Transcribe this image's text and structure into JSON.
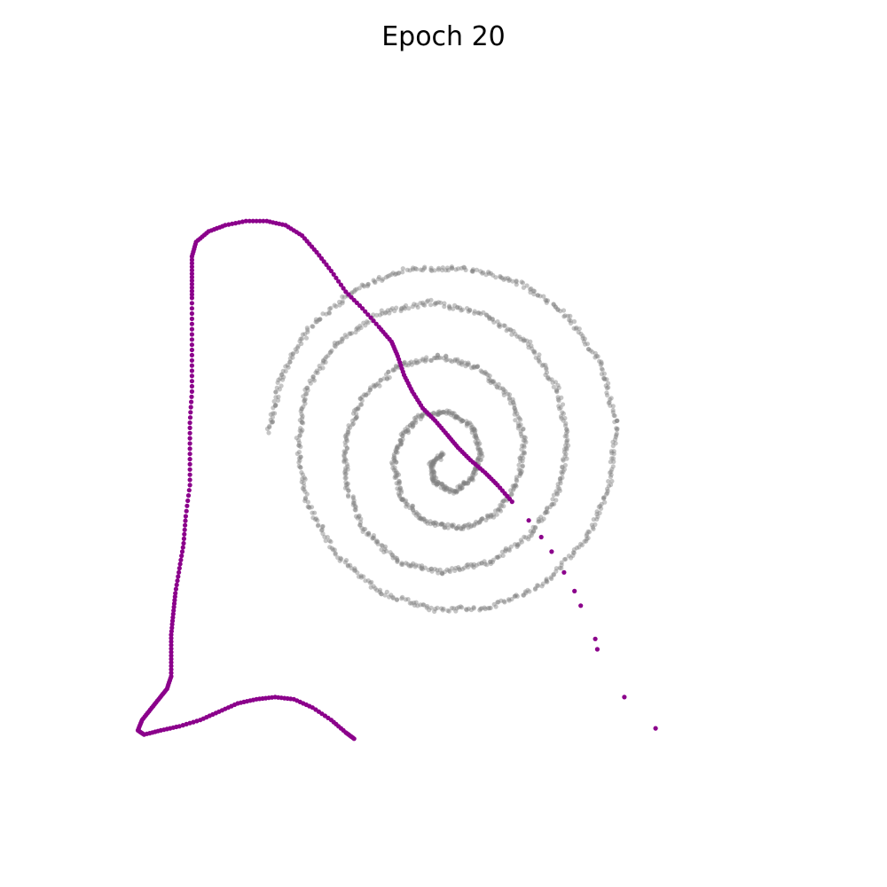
{
  "chart_data": {
    "type": "scatter",
    "title": "Epoch 20",
    "xlabel": "",
    "ylabel": "",
    "axes_visible": false,
    "grid": false,
    "xlim": [
      -1.6,
      1.6
    ],
    "ylim": [
      -1.6,
      1.6
    ],
    "series": [
      {
        "role": "target",
        "color": "#808080",
        "style": "dense point cloud along a three-turn spiral",
        "points": [
          [
            0.0,
            -0.05
          ],
          [
            -0.06,
            -0.1
          ],
          [
            -0.04,
            -0.19
          ],
          [
            0.05,
            -0.23
          ],
          [
            0.14,
            -0.17
          ],
          [
            0.18,
            -0.05
          ],
          [
            0.14,
            0.08
          ],
          [
            0.03,
            0.15
          ],
          [
            -0.1,
            0.14
          ],
          [
            -0.2,
            0.04
          ],
          [
            -0.24,
            -0.1
          ],
          [
            -0.2,
            -0.27
          ],
          [
            -0.08,
            -0.38
          ],
          [
            0.09,
            -0.41
          ],
          [
            0.25,
            -0.34
          ],
          [
            0.36,
            -0.18
          ],
          [
            0.39,
            0.02
          ],
          [
            0.32,
            0.22
          ],
          [
            0.17,
            0.36
          ],
          [
            -0.02,
            0.42
          ],
          [
            -0.22,
            0.37
          ],
          [
            -0.39,
            0.22
          ],
          [
            -0.47,
            0.02
          ],
          [
            -0.47,
            -0.2
          ],
          [
            -0.38,
            -0.42
          ],
          [
            -0.22,
            -0.57
          ],
          [
            0.0,
            -0.62
          ],
          [
            0.22,
            -0.57
          ],
          [
            0.42,
            -0.44
          ],
          [
            0.55,
            -0.24
          ],
          [
            0.6,
            0.0
          ],
          [
            0.55,
            0.26
          ],
          [
            0.41,
            0.48
          ],
          [
            0.2,
            0.62
          ],
          [
            -0.05,
            0.68
          ],
          [
            -0.3,
            0.63
          ],
          [
            -0.52,
            0.48
          ],
          [
            -0.66,
            0.26
          ],
          [
            -0.7,
            0.0
          ],
          [
            -0.66,
            -0.28
          ],
          [
            -0.52,
            -0.53
          ],
          [
            -0.31,
            -0.71
          ],
          [
            -0.05,
            -0.8
          ],
          [
            0.23,
            -0.79
          ],
          [
            0.49,
            -0.67
          ],
          [
            0.69,
            -0.46
          ],
          [
            0.8,
            -0.2
          ],
          [
            0.83,
            0.1
          ],
          [
            0.76,
            0.38
          ],
          [
            0.6,
            0.61
          ],
          [
            0.38,
            0.77
          ],
          [
            0.11,
            0.84
          ],
          [
            -0.17,
            0.84
          ],
          [
            -0.43,
            0.74
          ],
          [
            -0.65,
            0.55
          ],
          [
            -0.78,
            0.32
          ],
          [
            -0.84,
            0.06
          ]
        ]
      },
      {
        "role": "model",
        "color": "#8b008b",
        "style": "small points forming a distorted curve",
        "points": [
          [
            1.02,
            -1.37
          ],
          [
            0.87,
            -1.22
          ],
          [
            0.74,
            -0.99
          ],
          [
            0.73,
            -0.94
          ],
          [
            0.66,
            -0.78
          ],
          [
            0.63,
            -0.71
          ],
          [
            0.58,
            -0.62
          ],
          [
            0.52,
            -0.52
          ],
          [
            0.47,
            -0.45
          ],
          [
            0.41,
            -0.37
          ],
          [
            0.33,
            -0.28
          ],
          [
            0.26,
            -0.2
          ],
          [
            0.2,
            -0.14
          ],
          [
            0.13,
            -0.08
          ],
          [
            0.07,
            -0.02
          ],
          [
            0.02,
            0.04
          ],
          [
            -0.04,
            0.11
          ],
          [
            -0.1,
            0.17
          ],
          [
            -0.15,
            0.25
          ],
          [
            -0.19,
            0.33
          ],
          [
            -0.22,
            0.42
          ],
          [
            -0.25,
            0.49
          ],
          [
            -0.31,
            0.56
          ],
          [
            -0.39,
            0.65
          ],
          [
            -0.47,
            0.73
          ],
          [
            -0.54,
            0.83
          ],
          [
            -0.61,
            0.92
          ],
          [
            -0.68,
            1.0
          ],
          [
            -0.76,
            1.05
          ],
          [
            -0.85,
            1.07
          ],
          [
            -0.95,
            1.07
          ],
          [
            -1.05,
            1.05
          ],
          [
            -1.13,
            1.02
          ],
          [
            -1.19,
            0.97
          ],
          [
            -1.21,
            0.9
          ],
          [
            -1.21,
            0.8
          ],
          [
            -1.21,
            0.7
          ],
          [
            -1.21,
            0.55
          ],
          [
            -1.21,
            0.4
          ],
          [
            -1.21,
            0.25
          ],
          [
            -1.22,
            0.1
          ],
          [
            -1.22,
            -0.05
          ],
          [
            -1.22,
            -0.2
          ],
          [
            -1.24,
            -0.35
          ],
          [
            -1.25,
            -0.48
          ],
          [
            -1.27,
            -0.6
          ],
          [
            -1.29,
            -0.72
          ],
          [
            -1.3,
            -0.82
          ],
          [
            -1.31,
            -0.92
          ],
          [
            -1.31,
            -1.02
          ],
          [
            -1.31,
            -1.12
          ],
          [
            -1.33,
            -1.18
          ],
          [
            -1.37,
            -1.23
          ],
          [
            -1.41,
            -1.28
          ],
          [
            -1.45,
            -1.33
          ],
          [
            -1.47,
            -1.38
          ],
          [
            -1.44,
            -1.4
          ],
          [
            -1.36,
            -1.38
          ],
          [
            -1.27,
            -1.36
          ],
          [
            -1.17,
            -1.33
          ],
          [
            -1.08,
            -1.29
          ],
          [
            -0.99,
            -1.25
          ],
          [
            -0.9,
            -1.23
          ],
          [
            -0.81,
            -1.22
          ],
          [
            -0.72,
            -1.23
          ],
          [
            -0.63,
            -1.27
          ],
          [
            -0.54,
            -1.33
          ],
          [
            -0.47,
            -1.39
          ],
          [
            -0.43,
            -1.42
          ]
        ]
      }
    ]
  }
}
